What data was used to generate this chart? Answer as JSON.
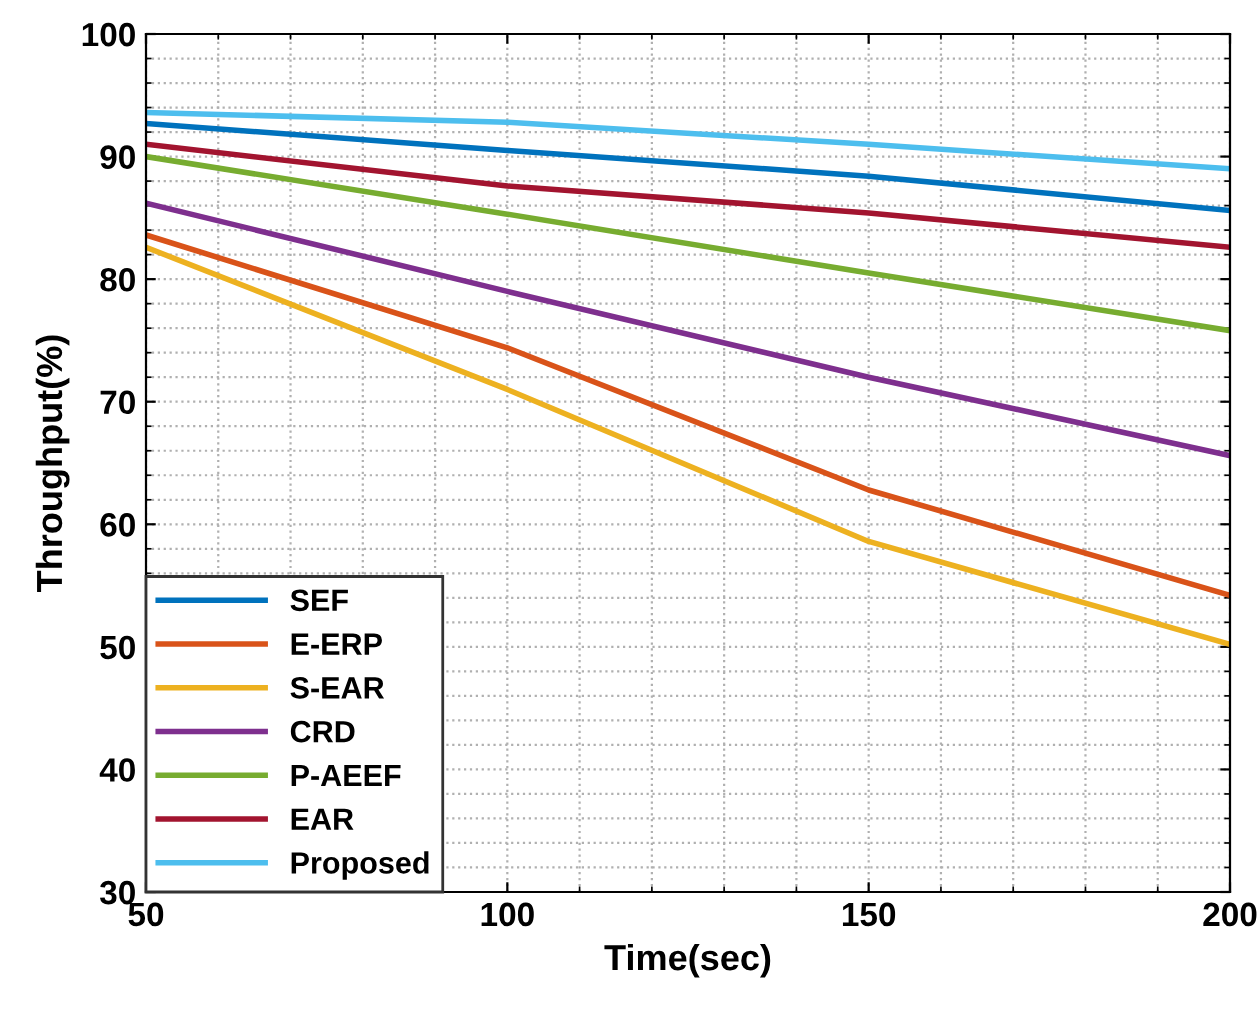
{
  "chart_data": {
    "type": "line",
    "xlabel": "Time(sec)",
    "ylabel": "Throughput(%)",
    "x": [
      50,
      100,
      150,
      200
    ],
    "xlim": [
      50,
      200
    ],
    "xticks": [
      50,
      100,
      150,
      200
    ],
    "ylim": [
      30,
      100
    ],
    "yticks": [
      30,
      40,
      50,
      60,
      70,
      80,
      90,
      100
    ],
    "grid": true,
    "legend": "bottom left",
    "marker": "none",
    "line_style": "solid",
    "series": [
      {
        "name": "SEF",
        "color": "#0072bd",
        "values": [
          92.7,
          90.5,
          88.4,
          85.6
        ]
      },
      {
        "name": "E-ERP",
        "color": "#d95319",
        "values": [
          83.6,
          74.4,
          62.8,
          54.2
        ]
      },
      {
        "name": "S-EAR",
        "color": "#edb120",
        "values": [
          82.6,
          71.0,
          58.6,
          50.2
        ]
      },
      {
        "name": "CRD",
        "color": "#7e2f8e",
        "values": [
          86.2,
          79.0,
          72.0,
          65.6
        ]
      },
      {
        "name": "P-AEEF",
        "color": "#77ac30",
        "values": [
          90.0,
          85.3,
          80.5,
          75.8
        ]
      },
      {
        "name": "EAR",
        "color": "#a2142f",
        "values": [
          91.0,
          87.6,
          85.4,
          82.6
        ]
      },
      {
        "name": "Proposed",
        "color": "#4dbeee",
        "values": [
          93.6,
          92.8,
          91.0,
          89.0
        ]
      }
    ]
  }
}
